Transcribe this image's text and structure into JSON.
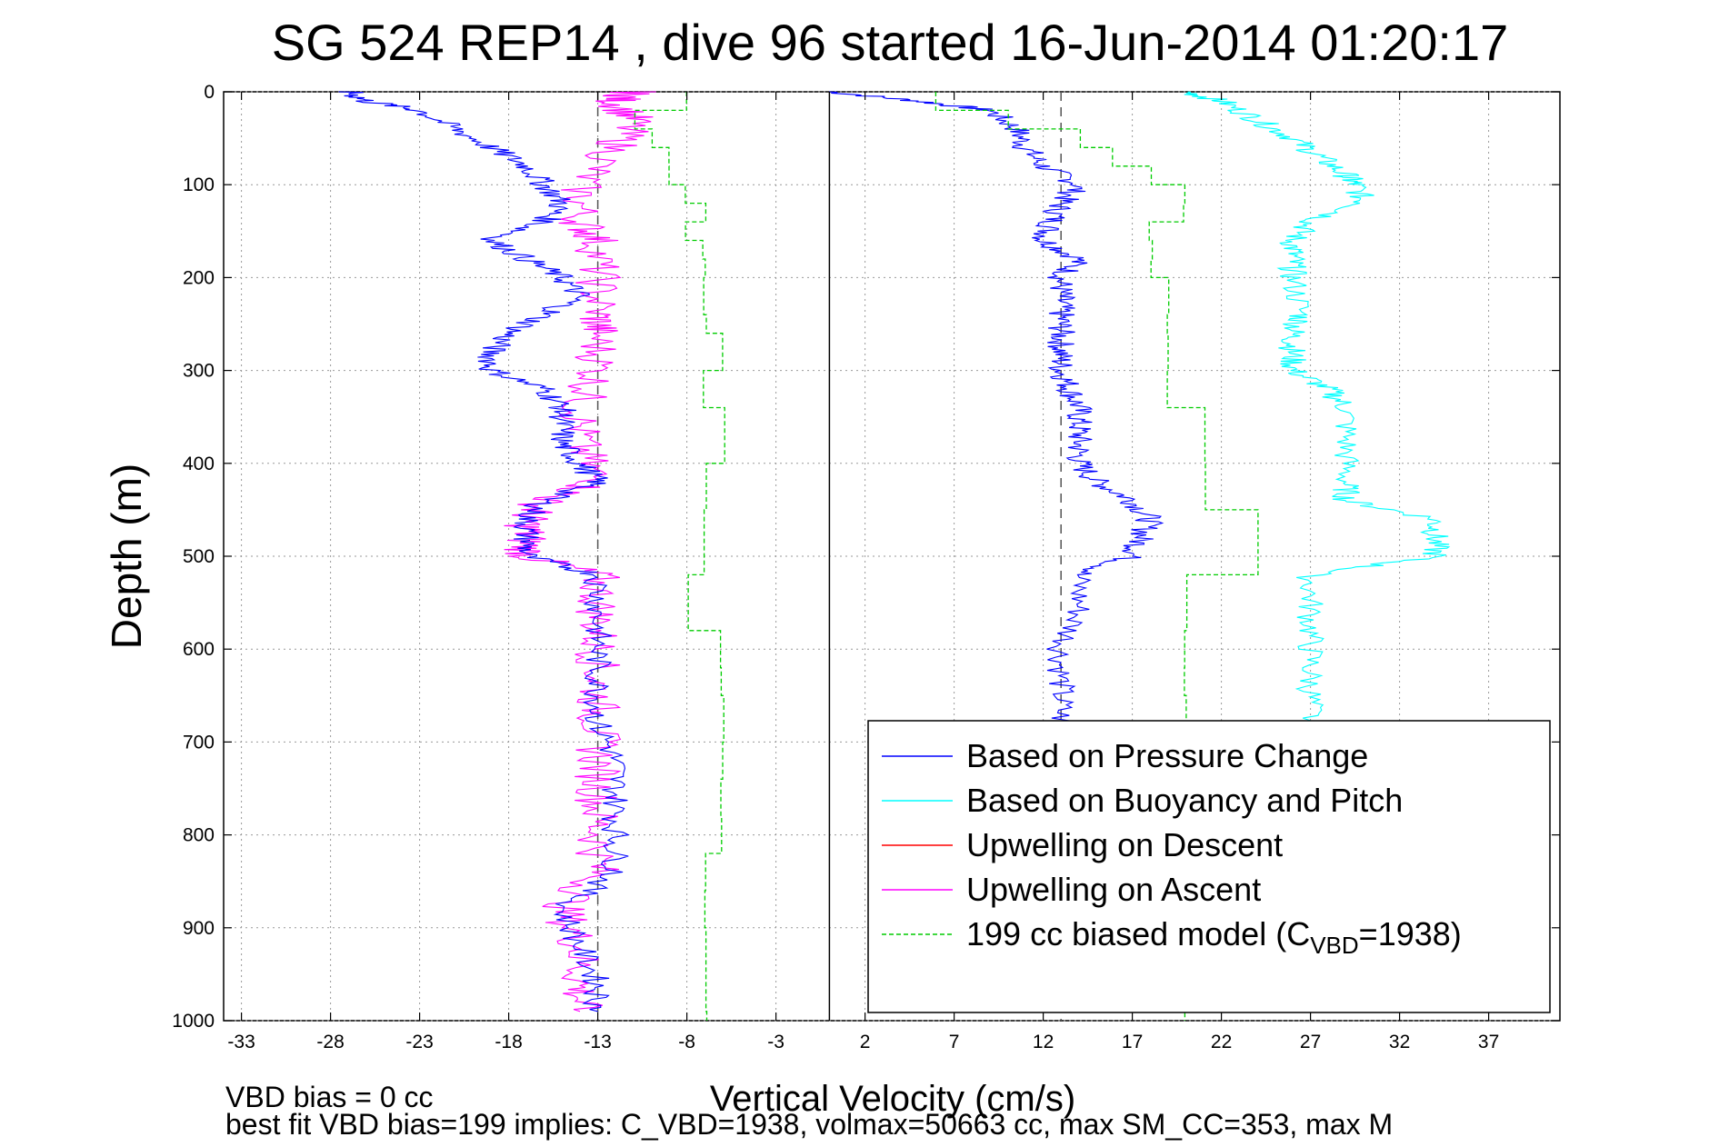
{
  "chart_data": {
    "type": "line",
    "title": "SG 524   REP14  , dive 96 started 16-Jun-2014 01:20:17",
    "xlabel": "Vertical Velocity (cm/s)",
    "ylabel": "Depth (m)",
    "xlim": [
      -34,
      41
    ],
    "ylim": [
      0,
      1000
    ],
    "y_reversed": true,
    "grid": true,
    "x_ticks": [
      "-33",
      "-28",
      "-23",
      "-18",
      "-13",
      "-8",
      "-3",
      "2",
      "7",
      "12",
      "17",
      "22",
      "27",
      "32",
      "37"
    ],
    "x_tick_values": [
      -33,
      -28,
      -23,
      -18,
      -13,
      -8,
      -3,
      2,
      7,
      12,
      17,
      22,
      27,
      32,
      37
    ],
    "y_ticks": [
      "0",
      "100",
      "200",
      "300",
      "400",
      "500",
      "600",
      "700",
      "800",
      "900",
      "1000"
    ],
    "y_tick_values": [
      0,
      100,
      200,
      300,
      400,
      500,
      600,
      700,
      800,
      900,
      1000
    ],
    "divider_x": 0,
    "reference_lines": [
      -13,
      13
    ],
    "legend_position": "lower-right",
    "legend": [
      {
        "label": "Based on Pressure Change",
        "color": "#0000ff",
        "dash": "solid"
      },
      {
        "label": "Based on Buoyancy and Pitch",
        "color": "#00ffff",
        "dash": "solid"
      },
      {
        "label": "Upwelling on Descent",
        "color": "#ff0000",
        "dash": "solid"
      },
      {
        "label": "Upwelling on Ascent",
        "color": "#ff00ff",
        "dash": "solid"
      },
      {
        "label_main": "199 cc biased model (C",
        "label_sub": "VBD",
        "label_tail": "=1938)",
        "color": "#00cc00",
        "dash": "dashed"
      }
    ],
    "series": [
      {
        "name": "Based on Pressure Change",
        "color": "#0000ff",
        "side": "descent",
        "depth": [
          0,
          10,
          20,
          40,
          60,
          80,
          100,
          120,
          140,
          160,
          180,
          200,
          220,
          240,
          260,
          280,
          300,
          320,
          340,
          360,
          380,
          400,
          420,
          440,
          460,
          480,
          500,
          520,
          560,
          600,
          640,
          680
        ],
        "values": [
          0,
          5,
          9,
          10.5,
          11,
          12,
          14,
          13,
          12.5,
          12,
          14,
          13,
          13,
          13,
          13,
          13,
          13,
          13.5,
          14,
          14,
          14,
          14,
          15,
          17,
          18,
          17.5,
          17,
          14,
          14,
          13,
          13,
          13
        ]
      },
      {
        "name": "Based on Buoyancy and Pitch",
        "color": "#00ffff",
        "side": "descent",
        "depth": [
          0,
          10,
          30,
          50,
          70,
          90,
          100,
          120,
          140,
          160,
          180,
          200,
          240,
          260,
          280,
          300,
          320,
          340,
          380,
          420,
          440,
          460,
          480,
          500,
          520,
          560,
          600,
          640,
          680
        ],
        "values": [
          20,
          22,
          24,
          26,
          27.5,
          29,
          29.5,
          30,
          27,
          26,
          26,
          26,
          26.5,
          26,
          26,
          26,
          28,
          29,
          29,
          29,
          29,
          34,
          34,
          34,
          27,
          27,
          27,
          27,
          27
        ]
      },
      {
        "name": "Upwelling on Ascent",
        "color": "#ff00ff",
        "side": "ascent",
        "depth": [
          0,
          10,
          30,
          60,
          100,
          140,
          160,
          200,
          240,
          260,
          300,
          340,
          380,
          420,
          440,
          460,
          480,
          500,
          520,
          560,
          600,
          640,
          680,
          720,
          760,
          800,
          840,
          880,
          920,
          960,
          990
        ],
        "values": [
          -11,
          -12,
          -11,
          -12,
          -14,
          -14,
          -13,
          -13,
          -13,
          -13,
          -13,
          -14,
          -14,
          -13,
          -16,
          -17,
          -17,
          -17,
          -13,
          -13,
          -13,
          -13,
          -13,
          -13,
          -13,
          -13,
          -13,
          -15,
          -14,
          -14,
          -14
        ]
      },
      {
        "name": "Ascent pressure change",
        "color": "#0000ff",
        "side": "ascent",
        "depth": [
          0,
          10,
          20,
          40,
          60,
          80,
          100,
          120,
          140,
          160,
          180,
          200,
          220,
          240,
          260,
          280,
          300,
          320,
          340,
          360,
          380,
          400,
          420,
          440,
          460,
          480,
          500,
          520,
          560,
          600,
          640,
          680,
          720,
          760,
          800,
          840,
          880,
          920,
          960,
          990
        ],
        "values": [
          -27,
          -26,
          -23,
          -21,
          -19,
          -17,
          -16,
          -15,
          -16,
          -19,
          -17,
          -15,
          -14,
          -16,
          -18,
          -19,
          -19,
          -16,
          -15,
          -15,
          -15,
          -14,
          -13,
          -16,
          -17,
          -17,
          -17,
          -13,
          -13,
          -13,
          -13,
          -13,
          -12,
          -12,
          -12,
          -12,
          -15,
          -14,
          -13,
          -13
        ]
      },
      {
        "name": "199 cc biased model",
        "color": "#00cc00",
        "side": "both",
        "step_depth": [
          0,
          20,
          40,
          60,
          80,
          100,
          120,
          140,
          160,
          180,
          200,
          240,
          260,
          300,
          340,
          400,
          450,
          520,
          580,
          620,
          650,
          700,
          740,
          780,
          820,
          860,
          900,
          990
        ],
        "descent": [
          6,
          10,
          14,
          16,
          18,
          20,
          20,
          18,
          18,
          18,
          19,
          19,
          19,
          19,
          21,
          21,
          24,
          20,
          20,
          20,
          20,
          20,
          20,
          20,
          20,
          20,
          20,
          20
        ],
        "ascent": [
          -8,
          -11,
          -10,
          -9,
          -9,
          -8,
          -7,
          -8,
          -7,
          -7,
          -7,
          -7,
          -6,
          -7,
          -6,
          -7,
          -7,
          -8,
          -6,
          -6,
          -6,
          -6,
          -6,
          -6,
          -7,
          -7,
          -7,
          -7
        ]
      }
    ]
  },
  "notes": {
    "bias_line": "VBD bias = 0 cc",
    "fit_line": "best fit VBD bias=199 implies: C_VBD=1938, volmax=50663 cc, max SM_CC=353, max M"
  }
}
